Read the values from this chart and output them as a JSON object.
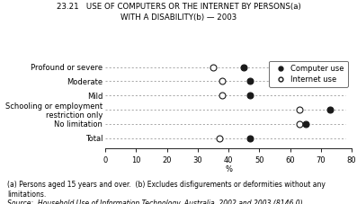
{
  "title_line1": "23.21   USE OF COMPUTERS OR THE INTERNET BY PERSONS(a)",
  "title_line2": "WITH A DISABILITY(b) — 2003",
  "categories": [
    "Profound or severe",
    "Moderate",
    "Mild",
    "Schooling or employment\nrestriction only",
    "No limitation",
    "Total"
  ],
  "computer_use": [
    45,
    47,
    47,
    73,
    65,
    47
  ],
  "internet_use": [
    35,
    38,
    38,
    63,
    63,
    37
  ],
  "xlim": [
    0,
    80
  ],
  "xticks": [
    0,
    10,
    20,
    30,
    40,
    50,
    60,
    70,
    80
  ],
  "xlabel": "%",
  "footnote1": "(a) Persons aged 15 years and over.  (b) Excludes disfigurements or deformities without any",
  "footnote2": "limitations.",
  "source": "Source:  Household Use of Information Technology, Australia, 2002 and 2003 (8146.0).",
  "legend_computer": "Computer use",
  "legend_internet": "Internet use",
  "dot_color_filled": "#1a1a1a",
  "dot_color_open": "#ffffff",
  "dot_edge_color": "#1a1a1a",
  "dashed_line_color": "#999999",
  "title_fontsize": 6.2,
  "label_fontsize": 6.0,
  "tick_fontsize": 6.0,
  "footnote_fontsize": 5.5,
  "legend_fontsize": 6.0,
  "marker_size": 5.0
}
